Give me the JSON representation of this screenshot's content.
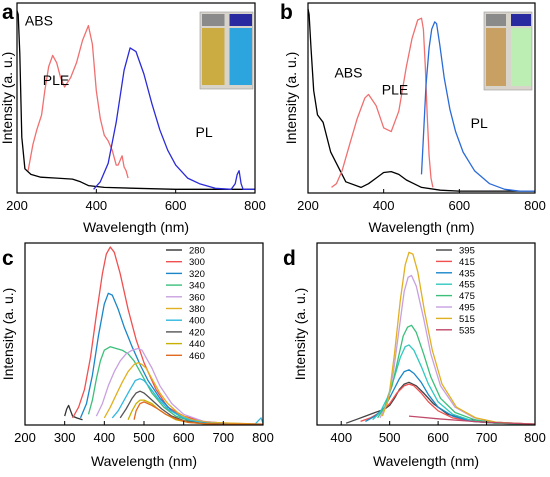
{
  "panels": [
    {
      "id": "a",
      "label": "a",
      "xlabel": "Wavelength (nm)",
      "ylabel": "Intensity (a. u.)",
      "inset": {
        "vial_colors": [
          "#c9a733",
          "#1aa0e0"
        ]
      }
    },
    {
      "id": "b",
      "label": "b",
      "xlabel": "Wavelength (nm)",
      "ylabel": "Intensity (a. u.)",
      "inset": {
        "vial_colors": [
          "#c89a58",
          "#b9f0b0"
        ]
      }
    },
    {
      "id": "c",
      "label": "c",
      "xlabel": "Wavelength (nm)",
      "ylabel": "Intensity (a. u.)"
    },
    {
      "id": "d",
      "label": "d",
      "xlabel": "Wavelength (nm)",
      "ylabel": "Intensity (a. u.)"
    }
  ],
  "chart_data": [
    {
      "panel": "a",
      "type": "line",
      "xlim": [
        200,
        800
      ],
      "ylim": [
        0,
        1
      ],
      "xticks": [
        200,
        400,
        600,
        800
      ],
      "yticks_shown": false,
      "grid": false,
      "legend": "none",
      "series": [
        {
          "name": "ABS",
          "color": "#000000",
          "x": [
            200,
            203,
            207,
            212,
            220,
            235,
            260,
            300,
            340,
            360,
            380,
            420,
            500,
            600,
            700,
            800
          ],
          "y": [
            0.98,
            0.96,
            0.75,
            0.3,
            0.13,
            0.1,
            0.085,
            0.08,
            0.075,
            0.06,
            0.04,
            0.03,
            0.025,
            0.02,
            0.02,
            0.02
          ]
        },
        {
          "name": "PLE",
          "color": "#f07070",
          "x": [
            228,
            240,
            250,
            262,
            270,
            280,
            290,
            300,
            310,
            320,
            335,
            350,
            365,
            380,
            390,
            400,
            410,
            420,
            430,
            440,
            450,
            455,
            465,
            470,
            475,
            480
          ],
          "y": [
            0.12,
            0.26,
            0.34,
            0.42,
            0.55,
            0.68,
            0.74,
            0.7,
            0.62,
            0.57,
            0.62,
            0.7,
            0.82,
            0.9,
            0.8,
            0.55,
            0.4,
            0.31,
            0.28,
            0.23,
            0.15,
            0.15,
            0.2,
            0.14,
            0.12,
            0.08
          ]
        },
        {
          "name": "PL",
          "color": "#2b2bd8",
          "x": [
            393,
            410,
            430,
            450,
            470,
            485,
            500,
            520,
            540,
            560,
            580,
            600,
            630,
            660,
            700,
            740,
            750,
            755,
            760,
            765,
            770,
            800
          ],
          "y": [
            0.02,
            0.06,
            0.16,
            0.38,
            0.66,
            0.78,
            0.76,
            0.64,
            0.48,
            0.34,
            0.23,
            0.15,
            0.08,
            0.05,
            0.025,
            0.02,
            0.05,
            0.1,
            0.12,
            0.05,
            0.02,
            0.02
          ]
        }
      ]
    },
    {
      "panel": "b",
      "type": "line",
      "xlim": [
        200,
        800
      ],
      "ylim": [
        0,
        1
      ],
      "xticks": [
        200,
        400,
        600,
        800
      ],
      "yticks_shown": false,
      "grid": false,
      "legend": "none",
      "series": [
        {
          "name": "ABS",
          "color": "#000000",
          "x": [
            200,
            203,
            208,
            215,
            225,
            240,
            260,
            300,
            340,
            360,
            380,
            400,
            420,
            440,
            460,
            480,
            500,
            550,
            600,
            800
          ],
          "y": [
            0.99,
            0.96,
            0.78,
            0.55,
            0.42,
            0.38,
            0.22,
            0.06,
            0.03,
            0.05,
            0.08,
            0.11,
            0.115,
            0.1,
            0.07,
            0.05,
            0.03,
            0.015,
            0.01,
            0.01
          ]
        },
        {
          "name": "PLE",
          "color": "#f07070",
          "x": [
            262,
            275,
            290,
            310,
            330,
            350,
            360,
            380,
            400,
            420,
            440,
            460,
            475,
            490,
            500,
            505,
            510,
            515,
            520,
            525,
            530
          ],
          "y": [
            0.03,
            0.05,
            0.12,
            0.26,
            0.4,
            0.51,
            0.53,
            0.47,
            0.35,
            0.33,
            0.44,
            0.68,
            0.83,
            0.93,
            0.94,
            0.88,
            0.68,
            0.42,
            0.2,
            0.08,
            0.03
          ]
        },
        {
          "name": "PL",
          "color": "#2b6bd8",
          "x": [
            500,
            505,
            512,
            520,
            527,
            535,
            540,
            548,
            560,
            575,
            590,
            610,
            640,
            680,
            720,
            760,
            800
          ],
          "y": [
            0.1,
            0.3,
            0.58,
            0.78,
            0.88,
            0.92,
            0.91,
            0.8,
            0.62,
            0.45,
            0.33,
            0.22,
            0.12,
            0.05,
            0.02,
            0.01,
            0.01
          ]
        }
      ]
    },
    {
      "panel": "c",
      "type": "line",
      "xlim": [
        200,
        800
      ],
      "ylim": [
        0,
        1
      ],
      "xticks": [
        200,
        300,
        400,
        500,
        600,
        700,
        800
      ],
      "yticks_shown": false,
      "grid": false,
      "legend": "top-right",
      "series": [
        {
          "name": "280",
          "color": "#333333",
          "x": [
            300,
            305,
            310,
            315,
            320,
            330,
            345
          ],
          "y": [
            0.05,
            0.09,
            0.11,
            0.08,
            0.05,
            0.04,
            0.03
          ]
        },
        {
          "name": "300",
          "color": "#f05050",
          "x": [
            320,
            335,
            350,
            365,
            380,
            395,
            405,
            415,
            425,
            440,
            460,
            480,
            500,
            530,
            560,
            600,
            650,
            700,
            750,
            800
          ],
          "y": [
            0.04,
            0.1,
            0.2,
            0.38,
            0.62,
            0.85,
            0.96,
            1.0,
            0.97,
            0.85,
            0.65,
            0.48,
            0.35,
            0.2,
            0.1,
            0.05,
            0.02,
            0.01,
            0.005,
            0.005
          ]
        },
        {
          "name": "320",
          "color": "#1a86c8",
          "x": [
            340,
            355,
            370,
            385,
            400,
            410,
            420,
            435,
            450,
            470,
            490,
            510,
            540,
            570,
            600,
            650,
            700,
            750,
            800
          ],
          "y": [
            0.04,
            0.12,
            0.28,
            0.5,
            0.68,
            0.74,
            0.73,
            0.65,
            0.55,
            0.44,
            0.34,
            0.25,
            0.15,
            0.08,
            0.04,
            0.015,
            0.01,
            0.005,
            0.005
          ]
        },
        {
          "name": "340",
          "color": "#3cbf7a",
          "x": [
            360,
            370,
            380,
            390,
            400,
            415,
            430,
            445,
            460,
            475,
            490,
            500,
            520,
            550,
            580,
            620,
            680,
            800
          ],
          "y": [
            0.06,
            0.14,
            0.26,
            0.36,
            0.42,
            0.44,
            0.43,
            0.42,
            0.4,
            0.36,
            0.3,
            0.26,
            0.18,
            0.1,
            0.05,
            0.02,
            0.01,
            0.005
          ]
        },
        {
          "name": "360",
          "color": "#c8a0e0",
          "x": [
            380,
            395,
            410,
            425,
            440,
            455,
            470,
            485,
            495,
            505,
            520,
            540,
            570,
            600,
            650,
            700,
            800
          ],
          "y": [
            0.05,
            0.12,
            0.22,
            0.3,
            0.36,
            0.4,
            0.42,
            0.43,
            0.42,
            0.38,
            0.32,
            0.22,
            0.12,
            0.06,
            0.02,
            0.01,
            0.005
          ]
        },
        {
          "name": "380",
          "color": "#e0b020",
          "x": [
            400,
            415,
            430,
            445,
            460,
            475,
            485,
            495,
            505,
            520,
            540,
            560,
            590,
            620,
            660,
            720,
            800
          ],
          "y": [
            0.04,
            0.1,
            0.17,
            0.24,
            0.3,
            0.34,
            0.35,
            0.34,
            0.32,
            0.26,
            0.18,
            0.12,
            0.06,
            0.03,
            0.015,
            0.01,
            0.005
          ]
        },
        {
          "name": "400",
          "color": "#30b8e0",
          "x": [
            420,
            435,
            450,
            465,
            478,
            490,
            500,
            515,
            535,
            560,
            590,
            620,
            660,
            720,
            780,
            795,
            800
          ],
          "y": [
            0.04,
            0.08,
            0.14,
            0.2,
            0.25,
            0.26,
            0.25,
            0.21,
            0.15,
            0.09,
            0.05,
            0.025,
            0.01,
            0.005,
            0.005,
            0.04,
            0.01
          ]
        },
        {
          "name": "420",
          "color": "#555555",
          "x": [
            440,
            455,
            470,
            480,
            490,
            500,
            510,
            525,
            545,
            570,
            600,
            640,
            700,
            800
          ],
          "y": [
            0.04,
            0.09,
            0.15,
            0.18,
            0.19,
            0.18,
            0.16,
            0.13,
            0.09,
            0.05,
            0.025,
            0.01,
            0.005,
            0.005
          ]
        },
        {
          "name": "440",
          "color": "#c8b000",
          "x": [
            460,
            470,
            480,
            490,
            500,
            510,
            520,
            535,
            555,
            580,
            610,
            650,
            700,
            800
          ],
          "y": [
            0.03,
            0.08,
            0.12,
            0.14,
            0.14,
            0.13,
            0.12,
            0.09,
            0.06,
            0.03,
            0.015,
            0.008,
            0.005,
            0.005
          ]
        },
        {
          "name": "460",
          "color": "#e06a20",
          "x": [
            475,
            480,
            490,
            500,
            510,
            520,
            535,
            555,
            580,
            610,
            650,
            700,
            800
          ],
          "y": [
            0.03,
            0.08,
            0.12,
            0.13,
            0.12,
            0.11,
            0.09,
            0.06,
            0.035,
            0.015,
            0.008,
            0.005,
            0.005
          ]
        }
      ]
    },
    {
      "panel": "d",
      "type": "line",
      "xlim": [
        350,
        800
      ],
      "ylim": [
        0,
        1
      ],
      "xticks": [
        400,
        500,
        600,
        700,
        800
      ],
      "yticks_shown": false,
      "grid": false,
      "legend": "top-right",
      "series": [
        {
          "name": "395",
          "color": "#444444",
          "x": [
            410,
            430,
            450,
            470,
            490,
            500,
            510,
            520,
            530,
            540,
            555,
            570,
            590,
            620,
            660,
            720,
            800
          ],
          "y": [
            0.01,
            0.03,
            0.05,
            0.07,
            0.09,
            0.11,
            0.15,
            0.2,
            0.23,
            0.24,
            0.22,
            0.18,
            0.12,
            0.06,
            0.03,
            0.015,
            0.005
          ]
        },
        {
          "name": "415",
          "color": "#f05050",
          "x": [
            440,
            460,
            480,
            500,
            515,
            530,
            540,
            550,
            565,
            580,
            600,
            630,
            670,
            720,
            800
          ],
          "y": [
            0.02,
            0.04,
            0.07,
            0.12,
            0.18,
            0.22,
            0.23,
            0.22,
            0.18,
            0.13,
            0.08,
            0.04,
            0.02,
            0.01,
            0.005
          ]
        },
        {
          "name": "435",
          "color": "#1a86c8",
          "x": [
            450,
            470,
            490,
            505,
            520,
            530,
            540,
            550,
            565,
            580,
            600,
            630,
            670,
            720,
            800
          ],
          "y": [
            0.02,
            0.05,
            0.1,
            0.18,
            0.26,
            0.3,
            0.31,
            0.29,
            0.24,
            0.17,
            0.1,
            0.05,
            0.02,
            0.01,
            0.005
          ]
        },
        {
          "name": "455",
          "color": "#30c8c0",
          "x": [
            465,
            480,
            495,
            510,
            522,
            532,
            540,
            550,
            565,
            580,
            600,
            630,
            670,
            720,
            800
          ],
          "y": [
            0.03,
            0.07,
            0.15,
            0.27,
            0.38,
            0.44,
            0.45,
            0.42,
            0.33,
            0.23,
            0.13,
            0.06,
            0.025,
            0.01,
            0.005
          ]
        },
        {
          "name": "475",
          "color": "#3cbf7a",
          "x": [
            475,
            490,
            505,
            518,
            528,
            537,
            545,
            555,
            570,
            585,
            605,
            635,
            675,
            720,
            800
          ],
          "y": [
            0.04,
            0.1,
            0.22,
            0.38,
            0.5,
            0.55,
            0.56,
            0.52,
            0.4,
            0.27,
            0.15,
            0.07,
            0.03,
            0.01,
            0.005
          ]
        },
        {
          "name": "495",
          "color": "#c8a0e0",
          "x": [
            480,
            495,
            508,
            520,
            530,
            538,
            545,
            555,
            570,
            585,
            605,
            635,
            675,
            720,
            800
          ],
          "y": [
            0.04,
            0.12,
            0.3,
            0.55,
            0.75,
            0.83,
            0.84,
            0.78,
            0.6,
            0.4,
            0.22,
            0.1,
            0.04,
            0.015,
            0.005
          ]
        },
        {
          "name": "515",
          "color": "#e0b020",
          "x": [
            485,
            498,
            510,
            522,
            532,
            540,
            548,
            558,
            572,
            588,
            608,
            638,
            678,
            720,
            800
          ],
          "y": [
            0.05,
            0.15,
            0.4,
            0.7,
            0.9,
            0.97,
            0.96,
            0.86,
            0.64,
            0.42,
            0.23,
            0.1,
            0.04,
            0.015,
            0.005
          ]
        },
        {
          "name": "535",
          "color": "#c04a6a",
          "x": [
            540,
            560,
            600,
            650,
            700,
            750,
            800
          ],
          "y": [
            0.05,
            0.045,
            0.035,
            0.025,
            0.015,
            0.01,
            0.005
          ]
        }
      ]
    }
  ],
  "annotations": {
    "a": [
      {
        "text": "ABS",
        "x": 220,
        "y": 0.9
      },
      {
        "text": "PLE",
        "x": 265,
        "y": 0.58
      },
      {
        "text": "PL",
        "x": 650,
        "y": 0.3
      }
    ],
    "b": [
      {
        "text": "ABS",
        "x": 270,
        "y": 0.62
      },
      {
        "text": "PLE",
        "x": 395,
        "y": 0.53
      },
      {
        "text": "PL",
        "x": 630,
        "y": 0.35
      }
    ]
  }
}
